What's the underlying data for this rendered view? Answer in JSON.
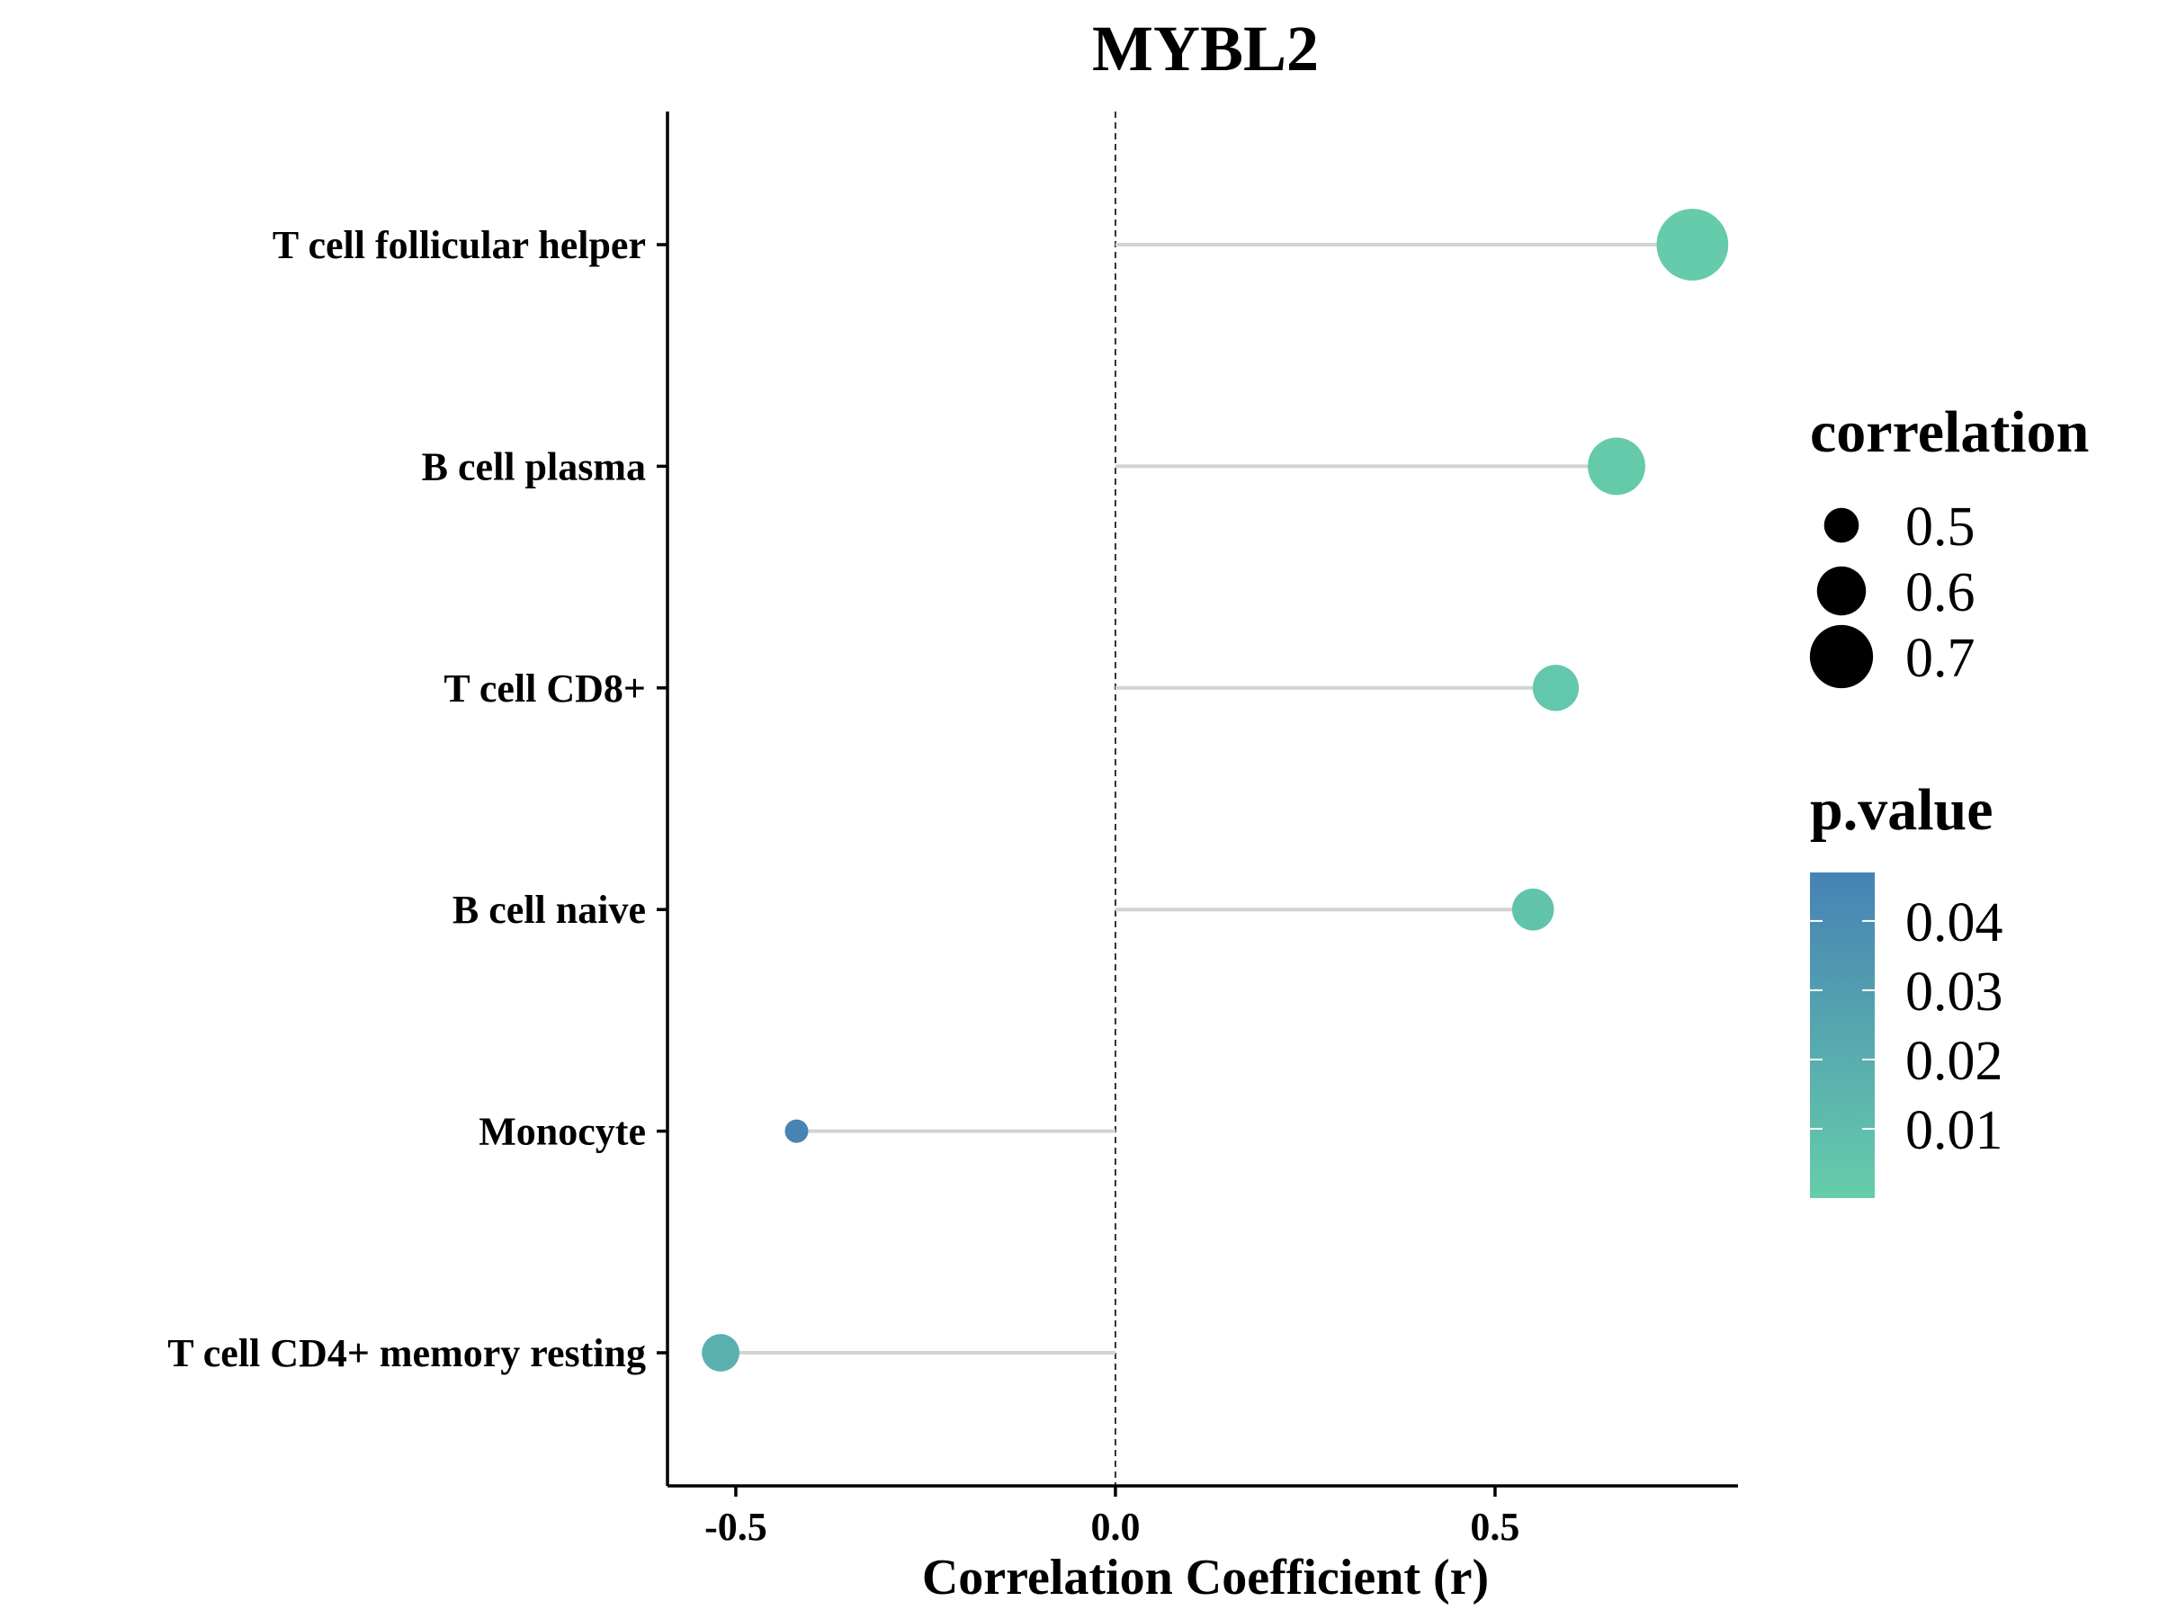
{
  "chart_data": {
    "type": "lollipop",
    "title": "MYBL2",
    "xlabel": "Correlation Coefficient (r)",
    "ylabel": "",
    "xlim": [
      -0.59,
      0.82
    ],
    "xticks": [
      -0.5,
      0.0,
      0.5
    ],
    "xtick_labels": [
      "-0.5",
      "0.0",
      "0.5"
    ],
    "reference_line": {
      "x": 0.0,
      "style": "dashed"
    },
    "grid": false,
    "categories": [
      "T cell follicular helper",
      "B cell plasma",
      "T cell CD8+",
      "B cell naive",
      "Monocyte",
      "T cell CD4+ memory resting"
    ],
    "values": [
      0.76,
      0.66,
      0.58,
      0.55,
      -0.42,
      -0.52
    ],
    "p_values": [
      0.001,
      0.002,
      0.004,
      0.006,
      0.046,
      0.018
    ],
    "legend": {
      "size": {
        "title": "correlation",
        "entries": [
          {
            "label": "0.5",
            "value": 0.5
          },
          {
            "label": "0.6",
            "value": 0.6
          },
          {
            "label": "0.7",
            "value": 0.7
          }
        ]
      },
      "color": {
        "title": "p.value",
        "ticks": [
          {
            "label": "0.04",
            "value": 0.04
          },
          {
            "label": "0.03",
            "value": 0.03
          },
          {
            "label": "0.02",
            "value": 0.02
          },
          {
            "label": "0.01",
            "value": 0.01
          }
        ],
        "range": [
          0.0,
          0.047
        ],
        "low_color": "#66CDAA",
        "high_color": "#4682B4"
      },
      "placement": "right"
    },
    "colors": {
      "stem": "#D3D3D3",
      "axis": "#000000",
      "reference_line": "#333333"
    }
  }
}
